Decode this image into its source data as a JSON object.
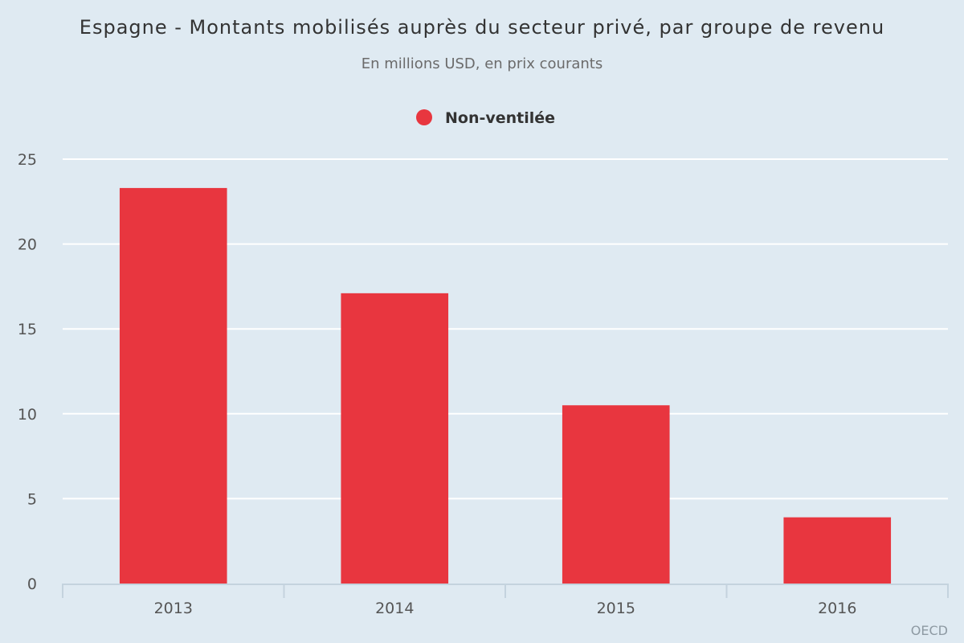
{
  "chart_data": {
    "type": "bar",
    "title": "Espagne - Montants mobilisés auprès du secteur privé, par groupe de revenu",
    "subtitle": "En millions USD, en prix courants",
    "categories": [
      "2013",
      "2014",
      "2015",
      "2016"
    ],
    "series": [
      {
        "name": "Non-ventilée",
        "values": [
          23.3,
          17.1,
          10.5,
          3.9
        ],
        "color": "#e8363f"
      }
    ],
    "ylim": [
      0,
      25
    ],
    "yticks": [
      0,
      5,
      10,
      15,
      20,
      25
    ],
    "grid": true,
    "legend_position": "top-center",
    "credit": "OECD"
  }
}
